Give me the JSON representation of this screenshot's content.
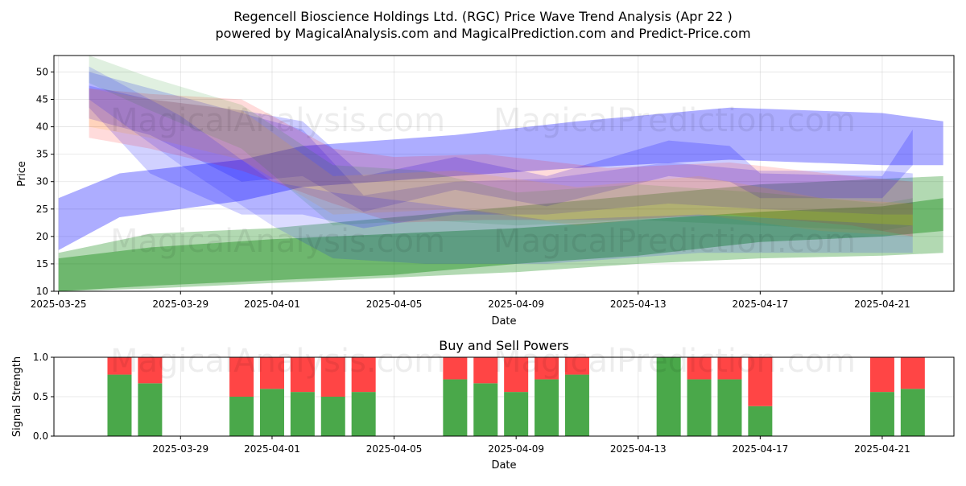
{
  "title_line1": "Regencell Bioscience Holdings Ltd. (RGC) Price Wave Trend Analysis (Apr 22 )",
  "title_line2": "powered by MagicalAnalysis.com and MagicalPrediction.com and Predict-Price.com",
  "watermarks": [
    "MagicalAnalysis.com",
    "MagicalPrediction.com"
  ],
  "chart_data": [
    {
      "type": "area",
      "xlabel": "Date",
      "ylabel": "Price",
      "xlim": [
        "2025-03-25",
        "2025-04-23"
      ],
      "ylim": [
        10,
        53
      ],
      "x_ticks": [
        "2025-03-25",
        "2025-03-29",
        "2025-04-01",
        "2025-04-05",
        "2025-04-09",
        "2025-04-13",
        "2025-04-17",
        "2025-04-21"
      ],
      "y_ticks": [
        10,
        15,
        20,
        25,
        30,
        35,
        40,
        45,
        50
      ],
      "grid": true,
      "series": [
        {
          "color": "#0000ff",
          "opacity": 0.32,
          "x": [
            "2025-03-25",
            "2025-03-27",
            "2025-03-31",
            "2025-04-02",
            "2025-04-07",
            "2025-04-11",
            "2025-04-16",
            "2025-04-21",
            "2025-04-23"
          ],
          "upper": [
            27,
            31.5,
            34,
            36.5,
            38.5,
            41,
            43.5,
            42.5,
            41
          ],
          "lower": [
            17.5,
            23.5,
            26.5,
            29,
            31,
            32.5,
            34,
            33,
            33
          ]
        },
        {
          "color": "#008000",
          "opacity": 0.3,
          "x": [
            "2025-03-25",
            "2025-03-28",
            "2025-04-01",
            "2025-04-05",
            "2025-04-09",
            "2025-04-13",
            "2025-04-17",
            "2025-04-21",
            "2025-04-23"
          ],
          "upper": [
            17,
            20.5,
            21.5,
            23.5,
            25.5,
            27.5,
            29.5,
            30.5,
            31
          ],
          "lower": [
            10,
            10.5,
            11.5,
            12.5,
            13.5,
            15,
            16,
            16.5,
            17
          ]
        },
        {
          "color": "#008000",
          "opacity": 0.38,
          "x": [
            "2025-03-25",
            "2025-03-28",
            "2025-04-01",
            "2025-04-05",
            "2025-04-09",
            "2025-04-13",
            "2025-04-17",
            "2025-04-21",
            "2025-04-23"
          ],
          "upper": [
            16,
            18,
            19.5,
            20.5,
            21.5,
            23,
            24.5,
            25.5,
            27
          ],
          "lower": [
            10,
            11,
            12,
            13,
            15,
            16.5,
            19,
            20,
            21
          ]
        },
        {
          "color": "#0000ff",
          "opacity": 0.2,
          "x": [
            "2025-03-26",
            "2025-03-28",
            "2025-03-31",
            "2025-04-02",
            "2025-04-04",
            "2025-04-07",
            "2025-04-10",
            "2025-04-14",
            "2025-04-16",
            "2025-04-17",
            "2025-04-21",
            "2025-04-22"
          ],
          "upper": [
            47.5,
            45,
            43,
            41,
            31,
            34.5,
            31,
            37.5,
            36.5,
            31.5,
            31,
            39.5
          ],
          "lower": [
            41.5,
            38.5,
            30,
            31,
            24.5,
            28.5,
            25.5,
            31,
            30,
            27,
            27,
            33
          ]
        },
        {
          "color": "#0000ff",
          "opacity": 0.18,
          "x": [
            "2025-03-26",
            "2025-03-28",
            "2025-03-31",
            "2025-04-02",
            "2025-04-04",
            "2025-04-07",
            "2025-04-10",
            "2025-04-14",
            "2025-04-17",
            "2025-04-21",
            "2025-04-22"
          ],
          "upper": [
            50,
            47,
            42.5,
            39.5,
            27.5,
            30,
            30.5,
            33.5,
            32,
            32,
            31.5
          ],
          "lower": [
            43.5,
            31.5,
            24,
            24,
            21.5,
            24,
            24,
            26,
            25,
            24,
            24
          ]
        },
        {
          "color": "#ff0000",
          "opacity": 0.14,
          "x": [
            "2025-03-26",
            "2025-03-28",
            "2025-03-31",
            "2025-04-03",
            "2025-04-05",
            "2025-04-08",
            "2025-04-12",
            "2025-04-16",
            "2025-04-20",
            "2025-04-22"
          ],
          "upper": [
            47,
            46,
            45,
            36,
            34.5,
            35,
            32.5,
            33.5,
            31,
            30
          ],
          "lower": [
            38,
            36,
            32,
            26,
            22.5,
            23,
            23,
            24,
            22,
            20
          ]
        },
        {
          "color": "#008000",
          "opacity": 0.12,
          "x": [
            "2025-03-26",
            "2025-03-28",
            "2025-03-31",
            "2025-04-03",
            "2025-04-06",
            "2025-04-09",
            "2025-04-13",
            "2025-04-17",
            "2025-04-21",
            "2025-04-22"
          ],
          "upper": [
            53,
            49,
            44,
            33,
            32,
            28,
            29.5,
            28,
            26,
            27
          ],
          "lower": [
            48,
            43,
            36,
            22,
            23,
            22,
            23,
            22,
            21,
            22
          ]
        },
        {
          "color": "#ffa500",
          "opacity": 0.14,
          "x": [
            "2025-03-26",
            "2025-03-28",
            "2025-03-31",
            "2025-04-03",
            "2025-04-07",
            "2025-04-11",
            "2025-04-15",
            "2025-04-19",
            "2025-04-22"
          ],
          "upper": [
            47,
            45,
            43,
            31,
            32,
            29,
            31,
            27,
            26
          ],
          "lower": [
            40,
            38,
            34,
            24,
            25,
            22,
            24,
            21,
            20
          ]
        },
        {
          "color": "#0000ff",
          "opacity": 0.14,
          "x": [
            "2025-03-26",
            "2025-03-29",
            "2025-04-01",
            "2025-04-03",
            "2025-04-06",
            "2025-04-10",
            "2025-04-15",
            "2025-04-22"
          ],
          "upper": [
            51,
            42,
            30,
            28,
            26,
            23,
            24,
            22
          ],
          "lower": [
            45,
            33,
            22,
            16,
            15,
            15,
            17,
            17
          ]
        }
      ]
    },
    {
      "type": "bar",
      "title": "Buy and Sell Powers",
      "xlabel": "Date",
      "ylabel": "Signal Strength",
      "xlim": [
        "2025-03-25",
        "2025-04-23"
      ],
      "ylim": [
        0,
        1
      ],
      "x_ticks": [
        "2025-03-29",
        "2025-04-01",
        "2025-04-05",
        "2025-04-09",
        "2025-04-13",
        "2025-04-17",
        "2025-04-21"
      ],
      "y_ticks": [
        "0.0",
        "0.5",
        "1.0"
      ],
      "grid": true,
      "colors": {
        "buy": "#4aa84a",
        "sell": "#ff4545"
      },
      "dates": [
        "2025-03-27",
        "2025-03-28",
        "2025-03-31",
        "2025-04-01",
        "2025-04-02",
        "2025-04-03",
        "2025-04-04",
        "2025-04-07",
        "2025-04-08",
        "2025-04-09",
        "2025-04-10",
        "2025-04-11",
        "2025-04-14",
        "2025-04-15",
        "2025-04-16",
        "2025-04-17",
        "2025-04-21",
        "2025-04-22"
      ],
      "buy": [
        0.78,
        0.67,
        0.5,
        0.6,
        0.56,
        0.5,
        0.56,
        0.72,
        0.67,
        0.56,
        0.72,
        0.78,
        1.0,
        0.72,
        0.72,
        0.38,
        0.56,
        0.6
      ],
      "sell": [
        0.22,
        0.33,
        0.5,
        0.4,
        0.44,
        0.5,
        0.44,
        0.28,
        0.33,
        0.44,
        0.28,
        0.22,
        0.0,
        0.28,
        0.28,
        0.62,
        0.44,
        0.4
      ]
    }
  ]
}
